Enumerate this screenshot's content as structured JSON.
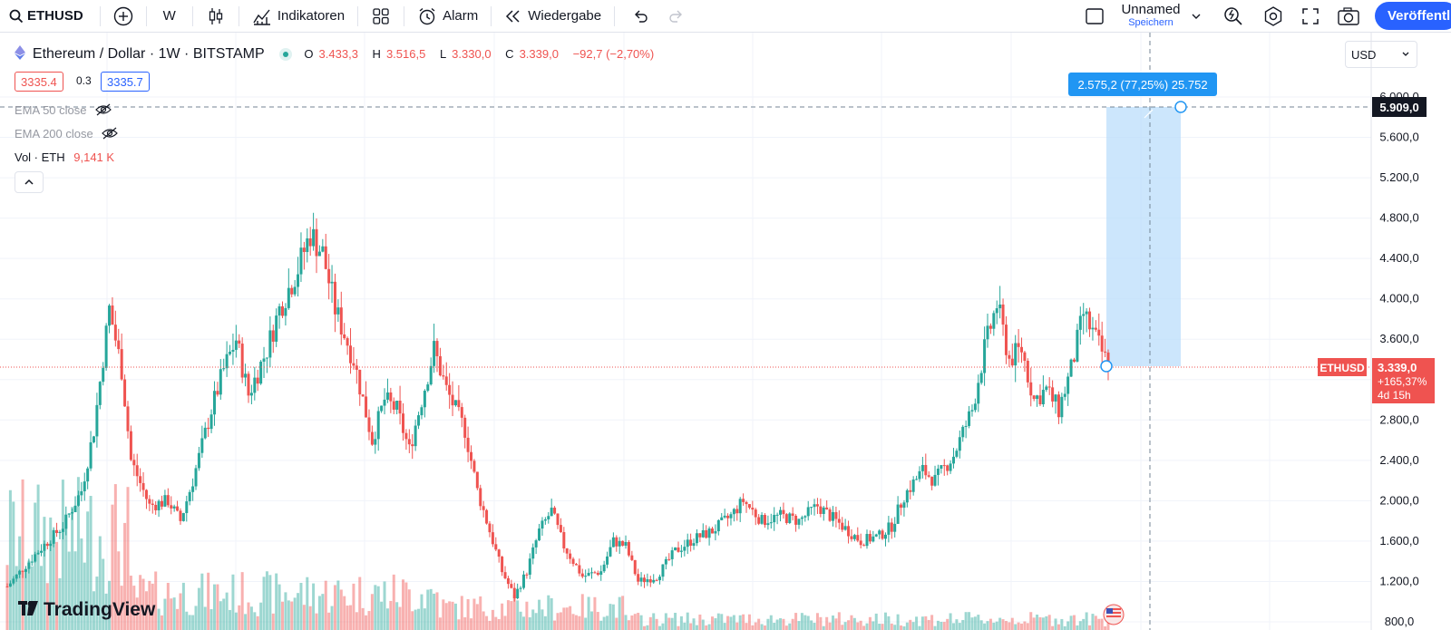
{
  "toolbar": {
    "symbol": "ETHUSD",
    "interval": "W",
    "indicators_label": "Indikatoren",
    "alert_label": "Alarm",
    "replay_label": "Wiedergabe",
    "layout_name": "Unnamed",
    "layout_status": "Speichern",
    "publish_label": "Veröffentli"
  },
  "legend": {
    "title": "Ethereum / Dollar · 1W · BITSTAMP",
    "o_label": "O",
    "o_value": "3.433,3",
    "h_label": "H",
    "h_value": "3.516,5",
    "l_label": "L",
    "l_value": "3.330,0",
    "c_label": "C",
    "c_value": "3.339,0",
    "change": "−92,7 (−2,70%)",
    "bid": "3335.4",
    "spread": "0.3",
    "ask": "3335.7",
    "ema50": "EMA 50 close",
    "ema200": "EMA 200 close",
    "vol_label": "Vol · ETH",
    "vol_value": "9,141 K"
  },
  "currency": "USD",
  "price_axis": {
    "labels": [
      "6.000,0",
      "5.600,0",
      "5.200,0",
      "4.800,0",
      "4.400,0",
      "4.000,0",
      "3.600,0",
      "3.200,0",
      "2.800,0",
      "2.400,0",
      "2.000,0",
      "1.600,0",
      "1.200,0",
      "800,0"
    ],
    "crosshair_price": "5.909,0",
    "last_price": "3.339,0",
    "last_change": "+165,37%",
    "countdown": "4d 15h",
    "symbol_tag": "ETHUSD"
  },
  "measure": {
    "label": "2.575,2 (77,25%) 25.752"
  },
  "watermark": "TradingView",
  "colors": {
    "up": "#26a69a",
    "down": "#ef5350",
    "accent": "#2962ff",
    "measure_fill": "#bbdefb",
    "measure_label": "#2196f3"
  },
  "chart_data": {
    "type": "candlestick",
    "interval": "1W",
    "ylim": [
      800,
      6200
    ],
    "last_close": 3339
  }
}
